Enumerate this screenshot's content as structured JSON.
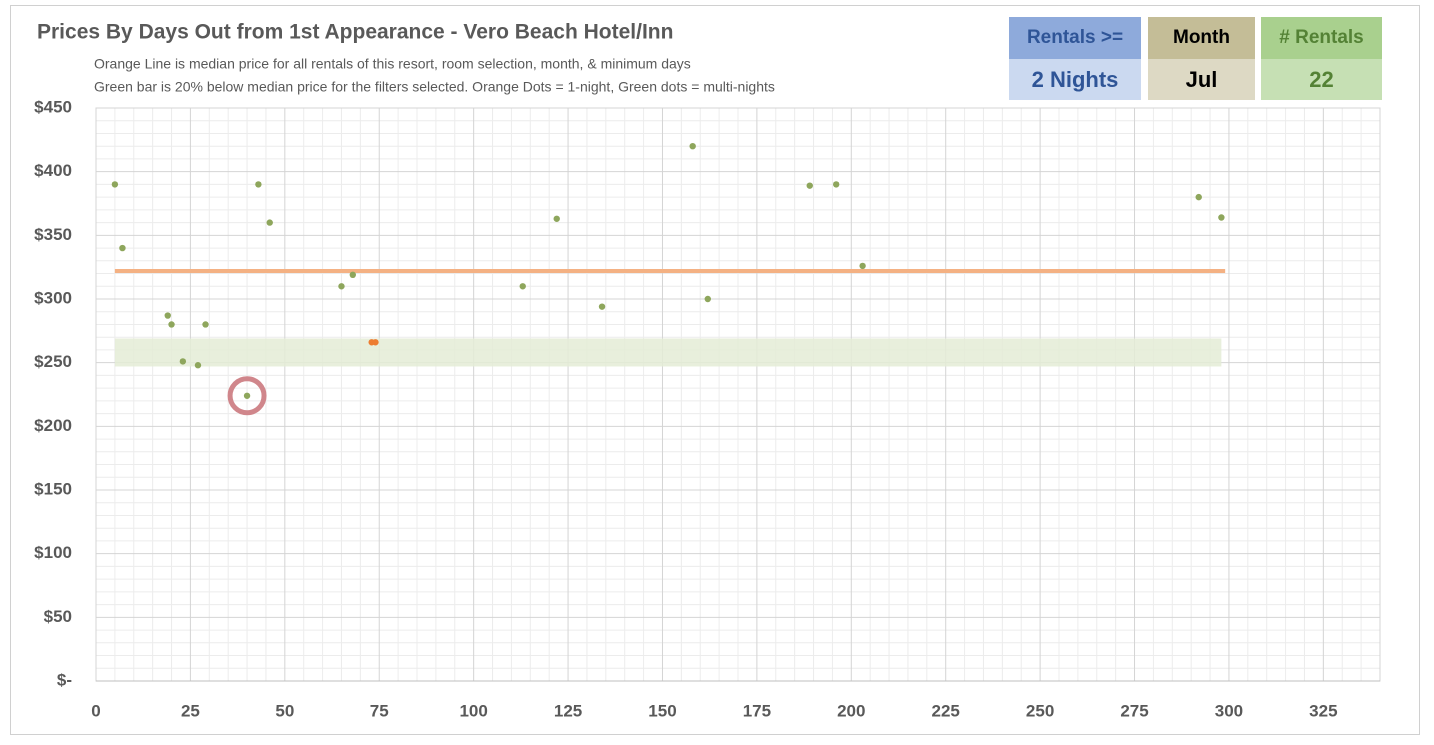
{
  "chart_data": {
    "type": "scatter",
    "title": "Prices By Days Out from 1st Appearance - Vero Beach Hotel/Inn",
    "subtitle": [
      "Orange Line is median price for all rentals of this resort, room selection, month, & minimum days",
      "Green bar is 20% below median price for the filters selected. Orange Dots = 1-night, Green dots = multi-nights"
    ],
    "series": [
      {
        "color": "#8ea65c",
        "x": [
          5,
          7,
          19,
          20,
          23,
          27,
          29,
          40,
          43,
          46,
          65,
          68,
          113,
          122,
          134,
          158,
          162,
          189,
          196,
          203,
          292,
          298
        ],
        "values": [
          390,
          340,
          287,
          280,
          251,
          248,
          280,
          224,
          390,
          360,
          310,
          319,
          310,
          363,
          294,
          420,
          300,
          389,
          390,
          326,
          380,
          364
        ]
      },
      {
        "color": "#ed7d31",
        "x": [
          73,
          74
        ],
        "values": [
          266,
          266
        ]
      }
    ],
    "median_line": {
      "x": [
        5,
        299
      ],
      "y": 322,
      "color": "#f4b183"
    },
    "band": {
      "x": [
        5,
        298
      ],
      "y": [
        247,
        269
      ],
      "color": "#e4ecd6"
    },
    "highlight": {
      "x": 40,
      "y": 224,
      "color": "#d0868b"
    },
    "xlim": [
      0,
      340
    ],
    "ylim": [
      0,
      450
    ],
    "xticks": [
      0,
      25,
      50,
      75,
      100,
      125,
      150,
      175,
      200,
      225,
      250,
      275,
      300,
      325
    ],
    "yticks": [
      {
        "value": 0,
        "label": "$-"
      },
      {
        "value": 50,
        "label": "$50"
      },
      {
        "value": 100,
        "label": "$100"
      },
      {
        "value": 150,
        "label": "$150"
      },
      {
        "value": 200,
        "label": "$200"
      },
      {
        "value": 250,
        "label": "$250"
      },
      {
        "value": 300,
        "label": "$300"
      },
      {
        "value": 350,
        "label": "$350"
      },
      {
        "value": 400,
        "label": "$400"
      },
      {
        "value": 450,
        "label": "$450"
      }
    ],
    "grid": true,
    "minor_grid": true
  },
  "filters": [
    {
      "label": "Rentals >=",
      "value": "2 Nights"
    },
    {
      "label": "Month",
      "value": "Jul"
    },
    {
      "label": "# Rentals",
      "value": "22"
    }
  ]
}
